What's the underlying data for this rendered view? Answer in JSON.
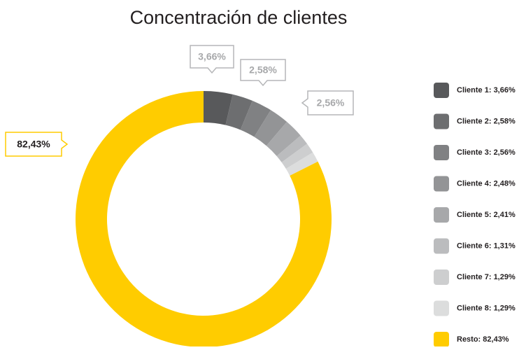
{
  "chart_data": {
    "type": "donut",
    "title": "Concentración de clientes",
    "categories": [
      "Cliente 1: 3,66%",
      "Cliente 2: 2,58%",
      "Cliente 3: 2,56%",
      "Cliente 4: 2,48%",
      "Cliente 5: 2,41%",
      "Cliente 6: 1,31%",
      "Cliente 7: 1,29%",
      "Cliente 8: 1,29%",
      "Resto: 82,43%"
    ],
    "values": [
      3.66,
      2.58,
      2.56,
      2.48,
      2.41,
      1.31,
      1.29,
      1.29,
      82.43
    ],
    "value_labels": [
      "3,66%",
      "2,58%",
      "2,56%",
      null,
      null,
      null,
      null,
      null,
      "82,43%"
    ],
    "colors": [
      "#58595b",
      "#6d6e70",
      "#808183",
      "#939496",
      "#a7a8aa",
      "#bbbcbe",
      "#cdcecf",
      "#dcdddd",
      "#ffcc00"
    ]
  }
}
